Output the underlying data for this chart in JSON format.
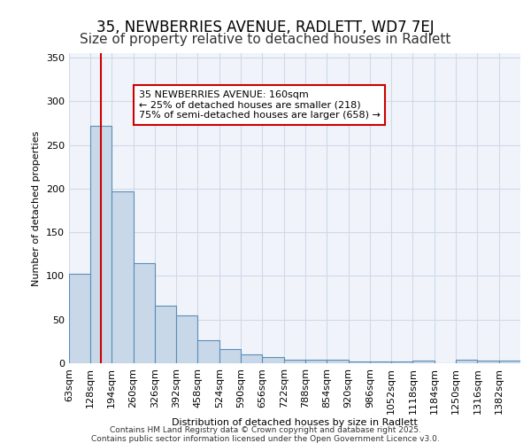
{
  "title1": "35, NEWBERRIES AVENUE, RADLETT, WD7 7EJ",
  "title2": "Size of property relative to detached houses in Radlett",
  "xlabel": "Distribution of detached houses by size in Radlett",
  "ylabel": "Number of detached properties",
  "bin_labels": [
    "63sqm",
    "128sqm",
    "194sqm",
    "260sqm",
    "326sqm",
    "392sqm",
    "458sqm",
    "524sqm",
    "590sqm",
    "656sqm",
    "722sqm",
    "788sqm",
    "854sqm",
    "920sqm",
    "986sqm",
    "1052sqm",
    "1118sqm",
    "1184sqm",
    "1250sqm",
    "1316sqm",
    "1382sqm"
  ],
  "bin_edges": [
    63,
    128,
    194,
    260,
    326,
    392,
    458,
    524,
    590,
    656,
    722,
    788,
    854,
    920,
    986,
    1052,
    1118,
    1184,
    1250,
    1316,
    1382,
    1448
  ],
  "bar_heights": [
    102,
    272,
    197,
    115,
    66,
    55,
    26,
    16,
    10,
    7,
    4,
    4,
    4,
    2,
    2,
    2,
    3,
    0,
    4,
    3,
    3
  ],
  "bar_color": "#c8d8e8",
  "bar_edge_color": "#5b8db8",
  "property_size": 160,
  "red_line_color": "#cc0000",
  "annotation_text": "35 NEWBERRIES AVENUE: 160sqm\n← 25% of detached houses are smaller (218)\n75% of semi-detached houses are larger (658) →",
  "annotation_box_color": "#cc0000",
  "ylim": [
    0,
    355
  ],
  "xlim": [
    63,
    1448
  ],
  "yticks": [
    0,
    50,
    100,
    150,
    200,
    250,
    300,
    350
  ],
  "grid_color": "#d0d8e8",
  "background_color": "#f0f4fa",
  "footer_text1": "Contains HM Land Registry data © Crown copyright and database right 2025.",
  "footer_text2": "Contains public sector information licensed under the Open Government Licence v3.0.",
  "title1_fontsize": 12,
  "title2_fontsize": 11
}
